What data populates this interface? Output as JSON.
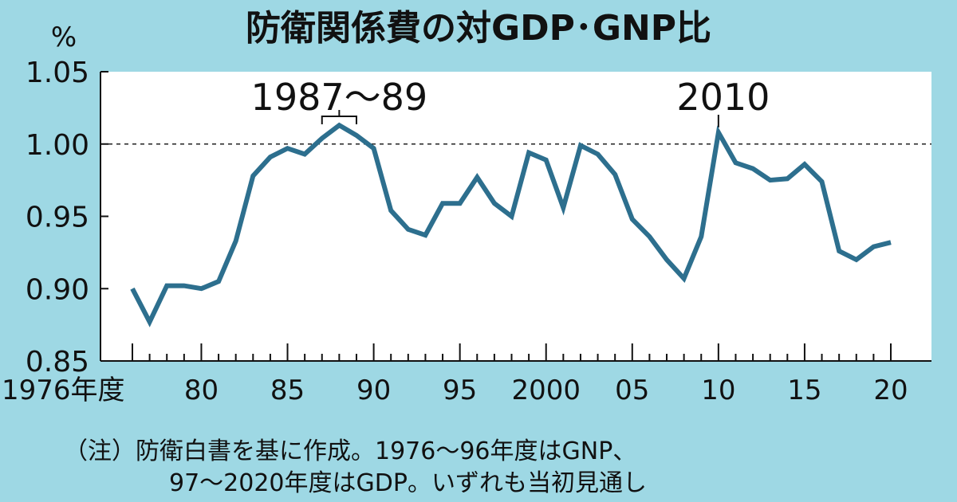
{
  "colors": {
    "background": "#9ed8e4",
    "plot_area": "#ffffff",
    "line": "#2d6f8e",
    "text": "#111111"
  },
  "chart_data": {
    "type": "line",
    "title": "防衛関係費の対GDP･GNP比",
    "ylabel": "%",
    "xlabel": "",
    "ylim": [
      0.85,
      1.05
    ],
    "xlim": [
      1976,
      2020
    ],
    "y_ticks": [
      "1.05",
      "1.00",
      "0.95",
      "0.90",
      "0.85"
    ],
    "y_tick_values": [
      1.05,
      1.0,
      0.95,
      0.9,
      0.85
    ],
    "x_ticks": [
      {
        "value": 1976,
        "label": "1976年度"
      },
      {
        "value": 1980,
        "label": "80"
      },
      {
        "value": 1985,
        "label": "85"
      },
      {
        "value": 1990,
        "label": "90"
      },
      {
        "value": 1995,
        "label": "95"
      },
      {
        "value": 2000,
        "label": "2000"
      },
      {
        "value": 2005,
        "label": "05"
      },
      {
        "value": 2010,
        "label": "10"
      },
      {
        "value": 2015,
        "label": "15"
      },
      {
        "value": 2020,
        "label": "20"
      }
    ],
    "reference_line": {
      "y": 1.0,
      "style": "dashed"
    },
    "grid": false,
    "series": [
      {
        "x": [
          1976,
          1977,
          1978,
          1979,
          1980,
          1981,
          1982,
          1983,
          1984,
          1985,
          1986,
          1987,
          1988,
          1989,
          1990,
          1991,
          1992,
          1993,
          1994,
          1995,
          1996,
          1997,
          1998,
          1999,
          2000,
          2001,
          2002,
          2003,
          2004,
          2005,
          2006,
          2007,
          2008,
          2009,
          2010,
          2011,
          2012,
          2013,
          2014,
          2015,
          2016,
          2017,
          2018,
          2019,
          2020
        ],
        "values": [
          0.9,
          0.877,
          0.902,
          0.902,
          0.9,
          0.905,
          0.933,
          0.978,
          0.991,
          0.997,
          0.993,
          1.004,
          1.013,
          1.006,
          0.997,
          0.954,
          0.941,
          0.937,
          0.959,
          0.959,
          0.977,
          0.959,
          0.95,
          0.994,
          0.989,
          0.956,
          0.999,
          0.993,
          0.979,
          0.948,
          0.936,
          0.92,
          0.907,
          0.936,
          1.008,
          0.987,
          0.983,
          0.975,
          0.976,
          0.986,
          0.974,
          0.926,
          0.92,
          0.929,
          0.932
        ]
      }
    ],
    "annotations": [
      {
        "text": "1987～89",
        "x_start": 1987,
        "x_end": 1989
      },
      {
        "text": "2010",
        "x": 2010
      }
    ]
  },
  "note": {
    "line1": "（注）防衛白書を基に作成。1976～96年度はGNP、",
    "line2": "97～2020年度はGDP。いずれも当初見通し"
  }
}
